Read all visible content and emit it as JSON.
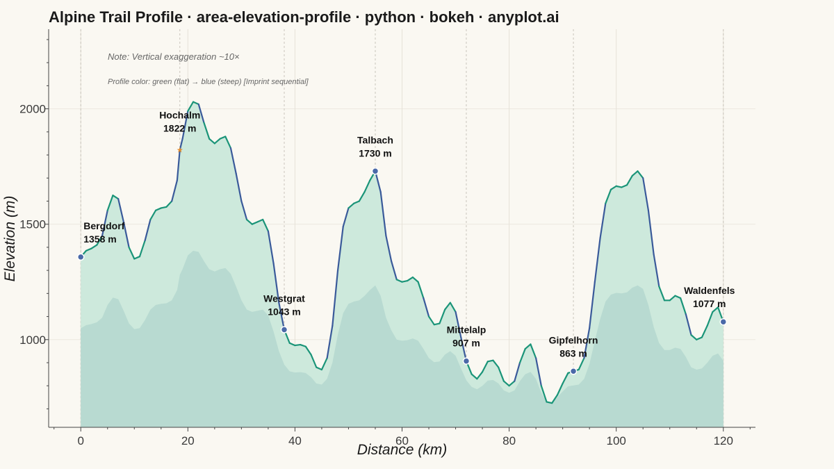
{
  "chart_data": {
    "type": "area",
    "title": "Alpine Trail Profile · area-elevation-profile · python · bokeh · anyplot.ai",
    "xlabel": "Distance (km)",
    "ylabel": "Elevation (m)",
    "xlim": [
      -6,
      126
    ],
    "ylim": [
      620,
      2345
    ],
    "x_ticks": [
      0,
      20,
      40,
      60,
      80,
      100,
      120
    ],
    "y_ticks": [
      1000,
      1500,
      2000
    ],
    "grid": true,
    "annotations": [
      "Note: Vertical exaggeration ~10×",
      "Profile color: green (flat) → blue (steep)  [Imprint sequential]"
    ],
    "colors": {
      "flat": "#1a9478",
      "steep": "#3a5a9a",
      "fill": "#cde9dc",
      "shadow": "#b6d8cf",
      "marker": "#4a69a8",
      "star": "#e08a2a",
      "background": "#faf8f2"
    },
    "series": [
      {
        "values": [
          [
            0,
            1358
          ],
          [
            1,
            1385
          ],
          [
            2,
            1395
          ],
          [
            3,
            1410
          ],
          [
            4,
            1450
          ],
          [
            5,
            1560
          ],
          [
            6,
            1625
          ],
          [
            7,
            1610
          ],
          [
            8,
            1510
          ],
          [
            9,
            1400
          ],
          [
            10,
            1350
          ],
          [
            11,
            1360
          ],
          [
            12,
            1430
          ],
          [
            13,
            1520
          ],
          [
            14,
            1560
          ],
          [
            15,
            1570
          ],
          [
            16,
            1575
          ],
          [
            17,
            1600
          ],
          [
            18,
            1690
          ],
          [
            18.5,
            1822
          ],
          [
            19,
            1870
          ],
          [
            20,
            1990
          ],
          [
            21,
            2030
          ],
          [
            22,
            2020
          ],
          [
            23,
            1940
          ],
          [
            24,
            1870
          ],
          [
            25,
            1850
          ],
          [
            26,
            1870
          ],
          [
            27,
            1880
          ],
          [
            28,
            1830
          ],
          [
            29,
            1720
          ],
          [
            30,
            1600
          ],
          [
            31,
            1520
          ],
          [
            32,
            1500
          ],
          [
            33,
            1510
          ],
          [
            34,
            1520
          ],
          [
            35,
            1470
          ],
          [
            36,
            1330
          ],
          [
            37,
            1160
          ],
          [
            38,
            1043
          ],
          [
            39,
            985
          ],
          [
            40,
            975
          ],
          [
            41,
            978
          ],
          [
            42,
            970
          ],
          [
            43,
            935
          ],
          [
            44,
            880
          ],
          [
            45,
            870
          ],
          [
            46,
            920
          ],
          [
            47,
            1060
          ],
          [
            48,
            1300
          ],
          [
            49,
            1490
          ],
          [
            50,
            1570
          ],
          [
            51,
            1590
          ],
          [
            52,
            1600
          ],
          [
            53,
            1640
          ],
          [
            54,
            1690
          ],
          [
            55,
            1730
          ],
          [
            56,
            1640
          ],
          [
            57,
            1450
          ],
          [
            58,
            1340
          ],
          [
            59,
            1260
          ],
          [
            60,
            1250
          ],
          [
            61,
            1255
          ],
          [
            62,
            1270
          ],
          [
            63,
            1250
          ],
          [
            64,
            1180
          ],
          [
            65,
            1100
          ],
          [
            66,
            1065
          ],
          [
            67,
            1070
          ],
          [
            68,
            1130
          ],
          [
            69,
            1160
          ],
          [
            70,
            1120
          ],
          [
            71,
            1010
          ],
          [
            72,
            907
          ],
          [
            73,
            850
          ],
          [
            74,
            830
          ],
          [
            75,
            860
          ],
          [
            76,
            905
          ],
          [
            77,
            910
          ],
          [
            78,
            880
          ],
          [
            79,
            820
          ],
          [
            80,
            800
          ],
          [
            81,
            820
          ],
          [
            82,
            900
          ],
          [
            83,
            960
          ],
          [
            84,
            980
          ],
          [
            85,
            920
          ],
          [
            86,
            800
          ],
          [
            87,
            730
          ],
          [
            88,
            725
          ],
          [
            89,
            760
          ],
          [
            90,
            810
          ],
          [
            91,
            855
          ],
          [
            92,
            863
          ],
          [
            93,
            870
          ],
          [
            94,
            920
          ],
          [
            95,
            1050
          ],
          [
            96,
            1250
          ],
          [
            97,
            1440
          ],
          [
            98,
            1590
          ],
          [
            99,
            1650
          ],
          [
            100,
            1665
          ],
          [
            101,
            1660
          ],
          [
            102,
            1670
          ],
          [
            103,
            1710
          ],
          [
            104,
            1730
          ],
          [
            105,
            1700
          ],
          [
            106,
            1560
          ],
          [
            107,
            1370
          ],
          [
            108,
            1230
          ],
          [
            109,
            1170
          ],
          [
            110,
            1170
          ],
          [
            111,
            1190
          ],
          [
            112,
            1180
          ],
          [
            113,
            1110
          ],
          [
            114,
            1020
          ],
          [
            115,
            1000
          ],
          [
            116,
            1010
          ],
          [
            117,
            1060
          ],
          [
            118,
            1120
          ],
          [
            119,
            1140
          ],
          [
            120,
            1077
          ]
        ]
      }
    ],
    "waypoints": [
      {
        "name": "Bergdorf",
        "km": 0,
        "elev": 1358,
        "label": "1358 m",
        "marker": "circle"
      },
      {
        "name": "Hochalm",
        "km": 18.5,
        "elev": 1822,
        "label": "1822 m",
        "marker": "star"
      },
      {
        "name": "Westgrat",
        "km": 38,
        "elev": 1043,
        "label": "1043 m",
        "marker": "circle"
      },
      {
        "name": "Talbach",
        "km": 55,
        "elev": 1730,
        "label": "1730 m",
        "marker": "circle"
      },
      {
        "name": "Mittelalp",
        "km": 72,
        "elev": 907,
        "label": "907 m",
        "marker": "circle"
      },
      {
        "name": "Gipfelhorn",
        "km": 92,
        "elev": 863,
        "label": "863 m",
        "marker": "circle"
      },
      {
        "name": "Waldenfels",
        "km": 120,
        "elev": 1077,
        "label": "1077 m",
        "marker": "circle"
      }
    ]
  }
}
